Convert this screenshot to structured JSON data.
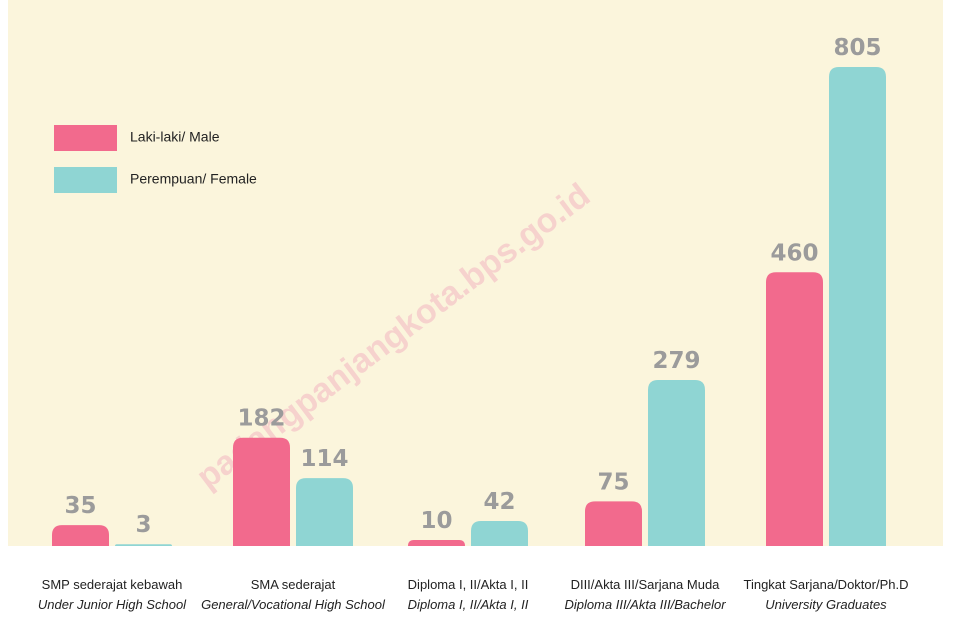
{
  "chart_data": {
    "type": "bar",
    "categories": [
      "SMP sederajat kebawah",
      "SMA sederajat",
      "Diploma I, II/Akta I, II",
      "DIII/Akta III/Sarjana Muda",
      "Tingkat Sarjana/Doktor/Ph.D"
    ],
    "categories_en": [
      "Under Junior High School",
      "General/Vocational High School",
      "Diploma I, II/Akta I, II",
      "Diploma III/Akta III/Bachelor",
      "University Graduates"
    ],
    "series": [
      {
        "name": "Laki-laki/ Male",
        "color": "#f26a8d",
        "values": [
          35,
          182,
          10,
          75,
          460
        ]
      },
      {
        "name": "Perempuan/ Female",
        "color": "#8fd5d3",
        "values": [
          3,
          114,
          42,
          279,
          805
        ]
      }
    ],
    "watermark": "padangpanjangkota.bps.go.id"
  }
}
